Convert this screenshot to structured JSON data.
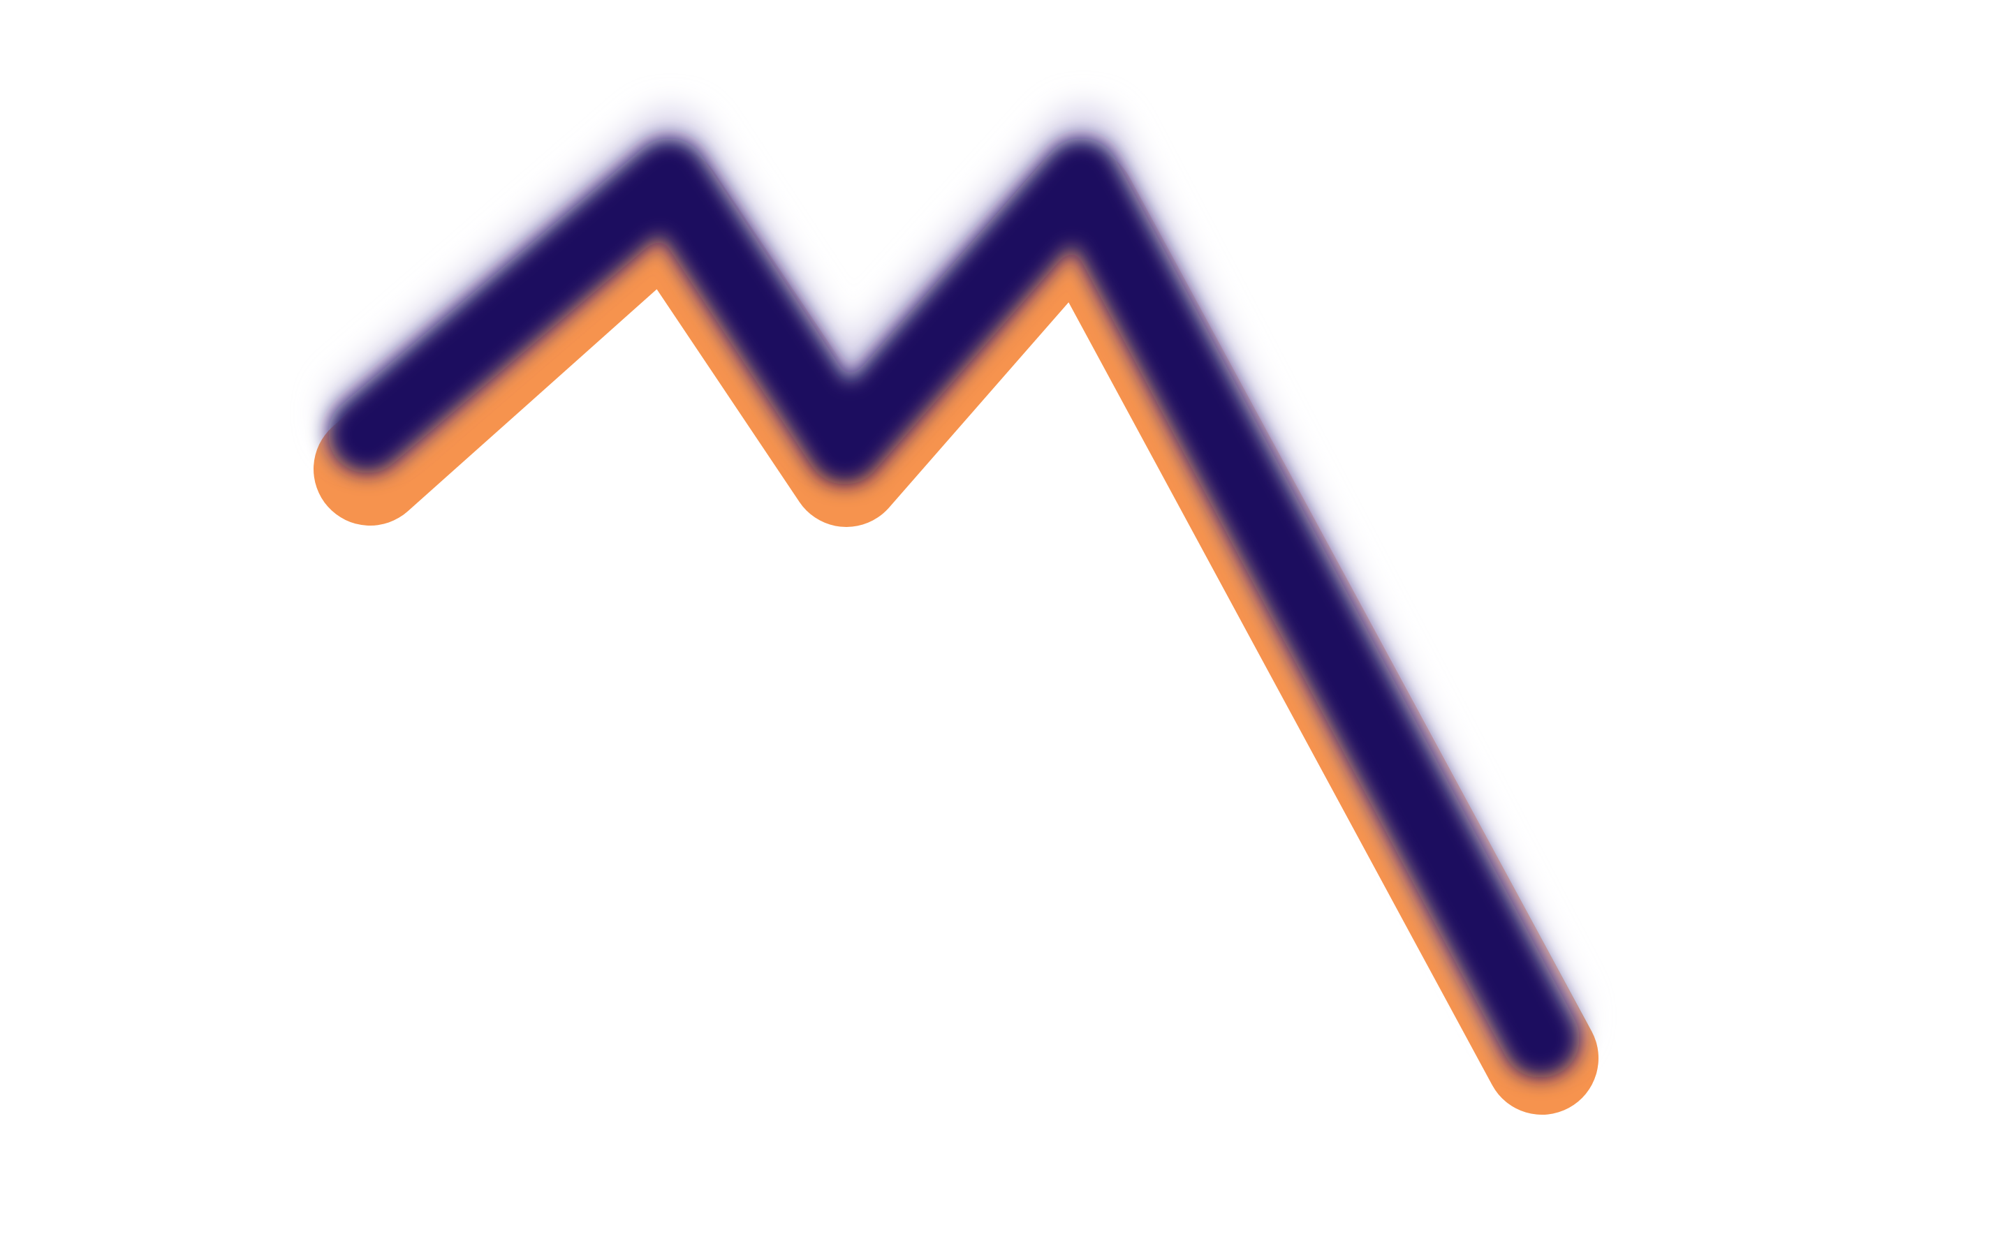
{
  "graphic": {
    "kind": "zigzag-stroke",
    "icon": "zigzag-line-icon",
    "colors": {
      "background": "#ffffff",
      "primary": "#1f0f5e",
      "highlight": "#d8d3ea",
      "shadow": "#f6934e"
    }
  }
}
